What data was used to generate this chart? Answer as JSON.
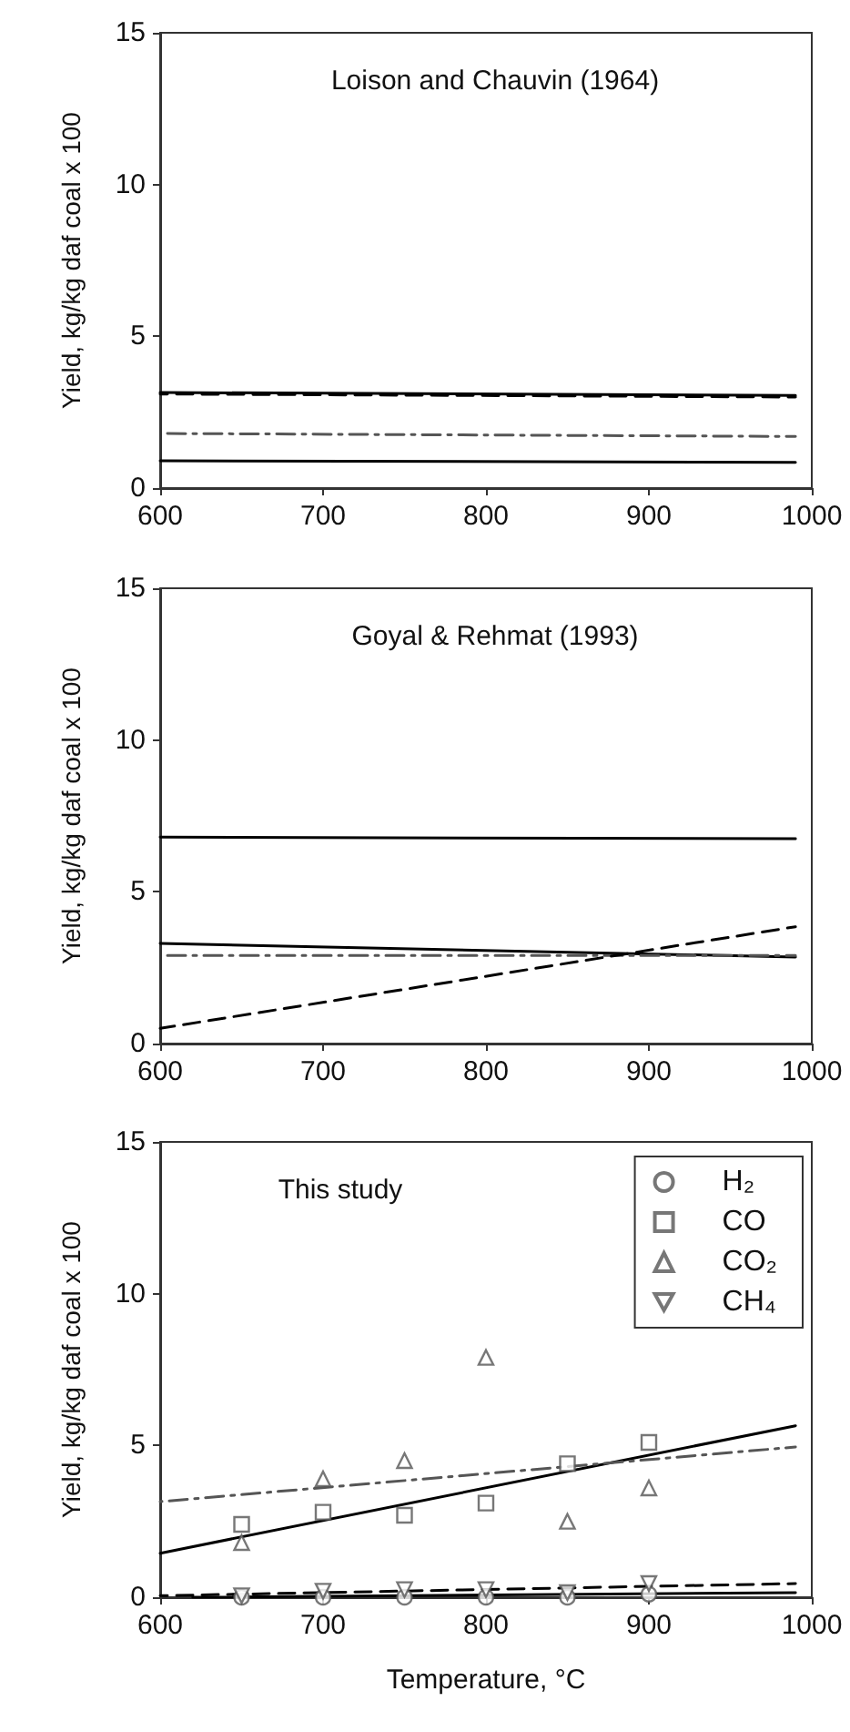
{
  "chart_data": [
    {
      "type": "line",
      "title": "Loison and Chauvin (1964)",
      "ylabel": "Yield, kg/kg daf coal x 100",
      "x": [
        600,
        990
      ],
      "xlim": [
        600,
        1000
      ],
      "xticks": [
        600,
        700,
        800,
        900,
        1000
      ],
      "ylim": [
        0,
        15
      ],
      "yticks": [
        0,
        5,
        10,
        15
      ],
      "grid": false,
      "legend": false,
      "marker": "none",
      "series": [
        {
          "color": "#000000",
          "line_style": "solid",
          "values": [
            3.15,
            3.05
          ]
        },
        {
          "color": "#000000",
          "line_style": "dashed",
          "values": [
            3.1,
            3.0
          ]
        },
        {
          "color": "#555555",
          "line_style": "dashdot",
          "values": [
            1.8,
            1.7
          ]
        },
        {
          "color": "#000000",
          "line_style": "solid",
          "values": [
            0.9,
            0.85
          ]
        }
      ]
    },
    {
      "type": "line",
      "title": "Goyal & Rehmat (1993)",
      "ylabel": "Yield, kg/kg daf coal x 100",
      "x": [
        600,
        990
      ],
      "xlim": [
        600,
        1000
      ],
      "xticks": [
        600,
        700,
        800,
        900,
        1000
      ],
      "ylim": [
        0,
        15
      ],
      "yticks": [
        0,
        5,
        10,
        15
      ],
      "grid": false,
      "legend": false,
      "marker": "none",
      "series": [
        {
          "color": "#000000",
          "line_style": "solid",
          "values": [
            6.8,
            6.75
          ]
        },
        {
          "color": "#000000",
          "line_style": "solid",
          "values": [
            3.3,
            2.85
          ]
        },
        {
          "color": "#555555",
          "line_style": "dashdot",
          "values": [
            2.9,
            2.9
          ]
        },
        {
          "color": "#000000",
          "line_style": "dashed",
          "values": [
            0.5,
            3.85
          ]
        }
      ]
    },
    {
      "type": "scatter",
      "title": "This study",
      "xlabel": "Temperature, °C",
      "ylabel": "Yield, kg/kg daf coal x 100",
      "x": [
        650,
        700,
        750,
        800,
        850,
        900
      ],
      "xlim": [
        600,
        1000
      ],
      "xticks": [
        600,
        700,
        800,
        900,
        1000
      ],
      "ylim": [
        0,
        15
      ],
      "yticks": [
        0,
        5,
        10,
        15
      ],
      "grid": false,
      "legend": "top right",
      "series": [
        {
          "name": "H₂",
          "color": "#555555",
          "marker": "circle",
          "values": [
            0,
            0,
            0,
            0,
            0,
            0.1
          ]
        },
        {
          "name": "CO",
          "color": "#555555",
          "marker": "square",
          "values": [
            2.4,
            2.8,
            2.7,
            3.1,
            4.4,
            5.1
          ]
        },
        {
          "name": "CO₂",
          "color": "#555555",
          "marker": "triangle",
          "values": [
            1.8,
            3.9,
            4.5,
            7.9,
            2.5,
            3.6
          ]
        },
        {
          "name": "CH₄",
          "color": "#555555",
          "marker": "triangle_down",
          "values": [
            0.05,
            0.2,
            0.25,
            0.25,
            0.15,
            0.45
          ]
        },
        {
          "type": "line",
          "color": "#000000",
          "line_style": "solid",
          "marker": "none",
          "x": [
            620,
            990
          ],
          "values": [
            0,
            0.15
          ]
        },
        {
          "type": "line",
          "color": "#000000",
          "line_style": "solid",
          "marker": "none",
          "x": [
            600,
            990
          ],
          "values": [
            1.45,
            5.65
          ]
        },
        {
          "type": "line",
          "color": "#555555",
          "line_style": "dashdot",
          "marker": "none",
          "x": [
            600,
            990
          ],
          "values": [
            3.15,
            4.95
          ]
        },
        {
          "type": "line",
          "color": "#000000",
          "line_style": "dashed",
          "marker": "none",
          "x": [
            600,
            990
          ],
          "values": [
            0.05,
            0.45
          ]
        }
      ]
    }
  ]
}
